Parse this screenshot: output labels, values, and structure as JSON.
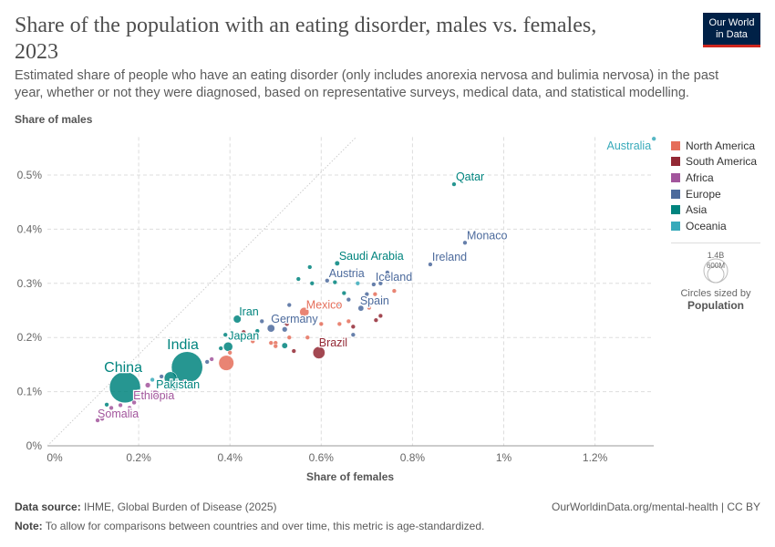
{
  "header": {
    "title": "Share of the population with an eating disorder, males vs. females, 2023",
    "subtitle": "Estimated share of people who have an eating disorder (only includes anorexia nervosa and bulimia nervosa) in the past year, whether or not they were diagnosed, based on representative surveys, medical data, and statistical modelling.",
    "logo": "Our World in Data"
  },
  "footer": {
    "source_label": "Data source:",
    "source": "IHME, Global Burden of Disease (2025)",
    "note_label": "Note:",
    "note": "To allow for comparisons between countries and over time, this metric is age-standardized.",
    "url": "OurWorldinData.org/mental-health | CC BY"
  },
  "size_legend": {
    "large": "1.4B",
    "small": "600M",
    "caption": "Circles sized by",
    "variable": "Population"
  },
  "chart_data": {
    "type": "scatter",
    "xlabel": "Share of females",
    "ylabel": "Share of males",
    "xlim": [
      0,
      1.33
    ],
    "ylim": [
      0,
      0.57
    ],
    "xticks": [
      0,
      0.2,
      0.4,
      0.6,
      0.8,
      1,
      1.2
    ],
    "xtick_labels": [
      "0%",
      "0.2%",
      "0.4%",
      "0.6%",
      "0.8%",
      "1%",
      "1.2%"
    ],
    "yticks": [
      0,
      0.1,
      0.2,
      0.3,
      0.4,
      0.5
    ],
    "ytick_labels": [
      "0%",
      "0.1%",
      "0.2%",
      "0.3%",
      "0.4%",
      "0.5%"
    ],
    "grid": true,
    "diagonal_reference_line": true,
    "legend_placement": "right",
    "regions": [
      {
        "name": "North America",
        "color": "#e56e5a"
      },
      {
        "name": "South America",
        "color": "#932834"
      },
      {
        "name": "Africa",
        "color": "#a2559c"
      },
      {
        "name": "Europe",
        "color": "#4c6a9c"
      },
      {
        "name": "Asia",
        "color": "#00847e"
      },
      {
        "name": "Oceania",
        "color": "#38aaba"
      }
    ],
    "points": [
      {
        "label": "Australia",
        "x": 1.329,
        "y": 0.567,
        "region": 5,
        "pop": 26
      },
      {
        "label": "Qatar",
        "x": 0.891,
        "y": 0.483,
        "region": 4,
        "pop": 3
      },
      {
        "label": "Monaco",
        "x": 0.915,
        "y": 0.375,
        "region": 3,
        "pop": 0.04
      },
      {
        "label": "Ireland",
        "x": 0.839,
        "y": 0.335,
        "region": 3,
        "pop": 5
      },
      {
        "label": "Saudi Arabia",
        "x": 0.635,
        "y": 0.337,
        "region": 4,
        "pop": 36
      },
      {
        "label": "Austria",
        "x": 0.613,
        "y": 0.305,
        "region": 3,
        "pop": 9
      },
      {
        "label": "Iceland",
        "x": 0.715,
        "y": 0.298,
        "region": 3,
        "pop": 0.4
      },
      {
        "label": "Mexico",
        "x": 0.563,
        "y": 0.247,
        "region": 0,
        "pop": 128
      },
      {
        "label": "Spain",
        "x": 0.687,
        "y": 0.254,
        "region": 3,
        "pop": 48
      },
      {
        "label": "Germany",
        "x": 0.49,
        "y": 0.217,
        "region": 3,
        "pop": 84
      },
      {
        "label": "Brazil",
        "x": 0.595,
        "y": 0.172,
        "region": 1,
        "pop": 216
      },
      {
        "label": "Iran",
        "x": 0.416,
        "y": 0.234,
        "region": 4,
        "pop": 89
      },
      {
        "label": "Japan",
        "x": 0.396,
        "y": 0.183,
        "region": 4,
        "pop": 124
      },
      {
        "label": "",
        "x": 0.392,
        "y": 0.153,
        "region": 0,
        "pop": 335
      },
      {
        "label": "India",
        "x": 0.306,
        "y": 0.145,
        "region": 4,
        "pop": 1430
      },
      {
        "label": "Pakistan",
        "x": 0.27,
        "y": 0.125,
        "region": 4,
        "pop": 240
      },
      {
        "label": "China",
        "x": 0.17,
        "y": 0.108,
        "region": 4,
        "pop": 1410
      },
      {
        "label": "Ethiopia",
        "x": 0.236,
        "y": 0.094,
        "region": 2,
        "pop": 126
      },
      {
        "label": "Somalia",
        "x": 0.11,
        "y": 0.047,
        "region": 2,
        "pop": 18
      },
      {
        "label": "",
        "x": 0.575,
        "y": 0.33,
        "region": 4,
        "pop": 2
      },
      {
        "label": "",
        "x": 0.55,
        "y": 0.308,
        "region": 4,
        "pop": 4
      },
      {
        "label": "",
        "x": 0.58,
        "y": 0.3,
        "region": 4,
        "pop": 4
      },
      {
        "label": "",
        "x": 0.63,
        "y": 0.302,
        "region": 4,
        "pop": 5
      },
      {
        "label": "",
        "x": 0.68,
        "y": 0.3,
        "region": 5,
        "pop": 1
      },
      {
        "label": "",
        "x": 0.745,
        "y": 0.32,
        "region": 3,
        "pop": 2
      },
      {
        "label": "",
        "x": 0.73,
        "y": 0.3,
        "region": 3,
        "pop": 5
      },
      {
        "label": "",
        "x": 0.76,
        "y": 0.286,
        "region": 0,
        "pop": 2
      },
      {
        "label": "",
        "x": 0.7,
        "y": 0.28,
        "region": 3,
        "pop": 5
      },
      {
        "label": "",
        "x": 0.65,
        "y": 0.282,
        "region": 4,
        "pop": 10
      },
      {
        "label": "",
        "x": 0.66,
        "y": 0.27,
        "region": 3,
        "pop": 10
      },
      {
        "label": "",
        "x": 0.64,
        "y": 0.262,
        "region": 3,
        "pop": 3
      },
      {
        "label": "",
        "x": 0.718,
        "y": 0.28,
        "region": 0,
        "pop": 2
      },
      {
        "label": "",
        "x": 0.705,
        "y": 0.255,
        "region": 0,
        "pop": 3
      },
      {
        "label": "",
        "x": 0.73,
        "y": 0.24,
        "region": 1,
        "pop": 4
      },
      {
        "label": "",
        "x": 0.72,
        "y": 0.232,
        "region": 1,
        "pop": 3
      },
      {
        "label": "",
        "x": 0.67,
        "y": 0.22,
        "region": 1,
        "pop": 3
      },
      {
        "label": "",
        "x": 0.67,
        "y": 0.205,
        "region": 3,
        "pop": 19
      },
      {
        "label": "",
        "x": 0.64,
        "y": 0.225,
        "region": 0,
        "pop": 3
      },
      {
        "label": "",
        "x": 0.6,
        "y": 0.225,
        "region": 0,
        "pop": 3
      },
      {
        "label": "",
        "x": 0.66,
        "y": 0.23,
        "region": 0,
        "pop": 3
      },
      {
        "label": "",
        "x": 0.52,
        "y": 0.228,
        "region": 3,
        "pop": 10
      },
      {
        "label": "",
        "x": 0.53,
        "y": 0.26,
        "region": 3,
        "pop": 3
      },
      {
        "label": "",
        "x": 0.52,
        "y": 0.215,
        "region": 3,
        "pop": 40
      },
      {
        "label": "",
        "x": 0.46,
        "y": 0.212,
        "region": 4,
        "pop": 20
      },
      {
        "label": "",
        "x": 0.52,
        "y": 0.185,
        "region": 4,
        "pop": 50
      },
      {
        "label": "",
        "x": 0.5,
        "y": 0.19,
        "region": 0,
        "pop": 3
      },
      {
        "label": "",
        "x": 0.53,
        "y": 0.2,
        "region": 0,
        "pop": 5
      },
      {
        "label": "",
        "x": 0.54,
        "y": 0.175,
        "region": 1,
        "pop": 3
      },
      {
        "label": "",
        "x": 0.49,
        "y": 0.19,
        "region": 0,
        "pop": 2
      },
      {
        "label": "",
        "x": 0.5,
        "y": 0.184,
        "region": 0,
        "pop": 3
      },
      {
        "label": "",
        "x": 0.45,
        "y": 0.193,
        "region": 0,
        "pop": 2
      },
      {
        "label": "",
        "x": 0.525,
        "y": 0.225,
        "region": 1,
        "pop": 3
      },
      {
        "label": "",
        "x": 0.47,
        "y": 0.23,
        "region": 3,
        "pop": 2
      },
      {
        "label": "",
        "x": 0.57,
        "y": 0.2,
        "region": 0,
        "pop": 2
      },
      {
        "label": "",
        "x": 0.4,
        "y": 0.172,
        "region": 0,
        "pop": 3
      },
      {
        "label": "",
        "x": 0.39,
        "y": 0.205,
        "region": 4,
        "pop": 2
      },
      {
        "label": "",
        "x": 0.38,
        "y": 0.18,
        "region": 4,
        "pop": 2
      },
      {
        "label": "",
        "x": 0.43,
        "y": 0.21,
        "region": 1,
        "pop": 3
      },
      {
        "label": "",
        "x": 0.36,
        "y": 0.16,
        "region": 2,
        "pop": 20
      },
      {
        "label": "",
        "x": 0.35,
        "y": 0.155,
        "region": 3,
        "pop": 10
      },
      {
        "label": "",
        "x": 0.25,
        "y": 0.128,
        "region": 3,
        "pop": 5
      },
      {
        "label": "",
        "x": 0.26,
        "y": 0.11,
        "region": 4,
        "pop": 40
      },
      {
        "label": "",
        "x": 0.28,
        "y": 0.108,
        "region": 4,
        "pop": 60
      },
      {
        "label": "",
        "x": 0.22,
        "y": 0.112,
        "region": 2,
        "pop": 40
      },
      {
        "label": "",
        "x": 0.2,
        "y": 0.1,
        "region": 4,
        "pop": 30
      },
      {
        "label": "",
        "x": 0.21,
        "y": 0.09,
        "region": 2,
        "pop": 50
      },
      {
        "label": "",
        "x": 0.19,
        "y": 0.08,
        "region": 2,
        "pop": 30
      },
      {
        "label": "",
        "x": 0.18,
        "y": 0.07,
        "region": 2,
        "pop": 20
      },
      {
        "label": "",
        "x": 0.16,
        "y": 0.075,
        "region": 2,
        "pop": 15
      },
      {
        "label": "",
        "x": 0.14,
        "y": 0.07,
        "region": 2,
        "pop": 10
      },
      {
        "label": "",
        "x": 0.13,
        "y": 0.076,
        "region": 4,
        "pop": 3
      },
      {
        "label": "",
        "x": 0.12,
        "y": 0.05,
        "region": 2,
        "pop": 5
      },
      {
        "label": "",
        "x": 0.23,
        "y": 0.122,
        "region": 5,
        "pop": 5
      },
      {
        "label": "",
        "x": 0.3,
        "y": 0.118,
        "region": 2,
        "pop": 30
      }
    ]
  }
}
